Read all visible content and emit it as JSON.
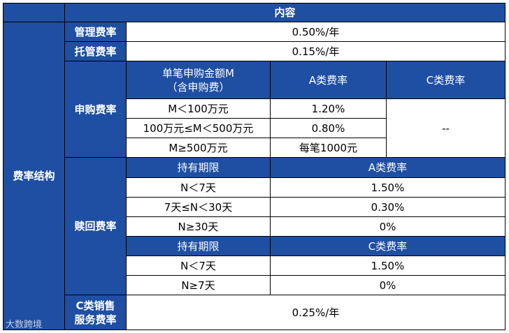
{
  "header": {
    "title": "内容"
  },
  "section": "费率结构",
  "management_fee": {
    "label": "管理费率",
    "value": "0.50%/年"
  },
  "custody_fee": {
    "label": "托管费率",
    "value": "0.15%/年"
  },
  "subscription": {
    "label": "申购费率",
    "columns": [
      [
        "单笔申购金额M",
        "（含申购费）"
      ],
      "A类费率",
      "C类费率"
    ],
    "rows": [
      [
        "M＜100万元",
        "1.20%"
      ],
      [
        "100万元≤M＜500万元",
        "0.80%"
      ],
      [
        "M≥500万元",
        "每笔1000元"
      ]
    ],
    "c_rate": "--"
  },
  "redemption": {
    "label": "赎回费率",
    "tables": [
      {
        "headers": [
          "持有期限",
          "A类费率"
        ],
        "rows": [
          [
            "N＜7天",
            "1.50%"
          ],
          [
            "7天≤N＜30天",
            "0.30%"
          ],
          [
            "N≥30天",
            "0%"
          ]
        ]
      },
      {
        "headers": [
          "持有期限",
          "C类费率"
        ],
        "rows": [
          [
            "N＜7天",
            "1.50%"
          ],
          [
            "N≥7天",
            "0%"
          ]
        ]
      }
    ]
  },
  "c_sales_fee": {
    "label": [
      "C类销售",
      "服务费率"
    ],
    "value": "0.25%/年"
  },
  "watermark": "大数跨境"
}
